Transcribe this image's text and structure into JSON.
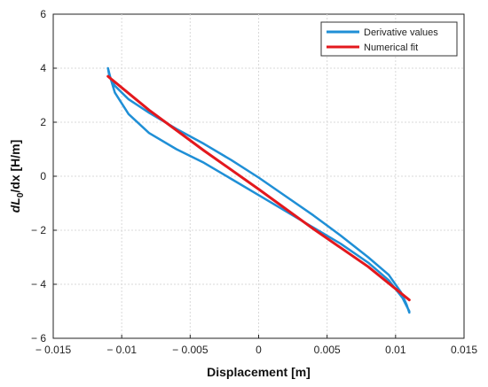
{
  "chart_data": {
    "type": "line",
    "xlabel": "Displacement [m]",
    "ylabel": {
      "main": "dL",
      "sub": "0",
      "rest": "/dx [H/m]"
    },
    "xlim": [
      -0.015,
      0.015
    ],
    "ylim": [
      -6,
      6
    ],
    "grid": true,
    "legend": "top-right",
    "xticks": [
      {
        "v": -0.015,
        "label": "− 0.015"
      },
      {
        "v": -0.01,
        "label": "− 0.01"
      },
      {
        "v": -0.005,
        "label": "− 0.005"
      },
      {
        "v": 0,
        "label": "0"
      },
      {
        "v": 0.005,
        "label": "0.005"
      },
      {
        "v": 0.01,
        "label": "0.01"
      },
      {
        "v": 0.015,
        "label": "0.015"
      }
    ],
    "yticks": [
      {
        "v": -6,
        "label": "− 6"
      },
      {
        "v": -4,
        "label": "− 4"
      },
      {
        "v": -2,
        "label": "− 2"
      },
      {
        "v": 0,
        "label": "0"
      },
      {
        "v": 2,
        "label": "2"
      },
      {
        "v": 4,
        "label": "4"
      },
      {
        "v": 6,
        "label": "6"
      }
    ],
    "series": [
      {
        "name": "Derivative values",
        "color": "#1f8fd6",
        "x": [
          -0.011,
          -0.0108,
          -0.0105,
          -0.0095,
          -0.008,
          -0.006,
          -0.004,
          -0.002,
          0.0,
          0.002,
          0.004,
          0.006,
          0.008,
          0.0095,
          0.0105,
          0.011,
          0.011,
          0.0108,
          0.0104,
          0.0095,
          0.008,
          0.006,
          0.004,
          0.002,
          0.0,
          -0.002,
          -0.004,
          -0.006,
          -0.008,
          -0.0095,
          -0.0105,
          -0.0109,
          -0.011
        ],
        "y": [
          4.0,
          3.6,
          3.1,
          2.3,
          1.6,
          1.0,
          0.5,
          -0.1,
          -0.7,
          -1.3,
          -1.9,
          -2.5,
          -3.2,
          -3.85,
          -4.5,
          -5.0,
          -5.05,
          -4.75,
          -4.3,
          -3.65,
          -3.0,
          -2.2,
          -1.45,
          -0.75,
          -0.05,
          0.6,
          1.2,
          1.75,
          2.35,
          2.85,
          3.35,
          3.7,
          4.0
        ]
      },
      {
        "name": "Numerical fit",
        "color": "#e3181d",
        "x": [
          -0.011,
          -0.008,
          -0.004,
          0.0,
          0.004,
          0.008,
          0.011
        ],
        "y": [
          3.7,
          2.45,
          0.95,
          -0.48,
          -1.95,
          -3.35,
          -4.58
        ]
      }
    ]
  }
}
